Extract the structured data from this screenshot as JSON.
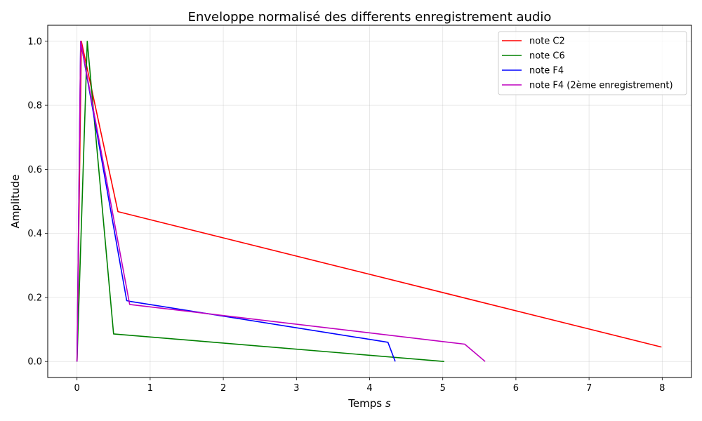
{
  "chart_data": {
    "type": "line",
    "title": "Enveloppe normalisé des differents enregistrement audio",
    "xlabel": "Temps",
    "xlabel_unit": "s",
    "ylabel": "Amplitude",
    "xlim": [
      -0.4,
      8.4
    ],
    "ylim": [
      -0.05,
      1.05
    ],
    "xticks": [
      0,
      1,
      2,
      3,
      4,
      5,
      6,
      7,
      8
    ],
    "yticks": [
      0.0,
      0.2,
      0.4,
      0.6,
      0.8,
      1.0
    ],
    "xtick_labels": [
      "0",
      "1",
      "2",
      "3",
      "4",
      "5",
      "6",
      "7",
      "8"
    ],
    "ytick_labels": [
      "0.0",
      "0.2",
      "0.4",
      "0.6",
      "0.8",
      "1.0"
    ],
    "grid": true,
    "legend_position": "top-right",
    "series": [
      {
        "name": "note C2",
        "color": "#ff0000",
        "points": [
          [
            0.0,
            0.0
          ],
          [
            0.06,
            1.0
          ],
          [
            0.56,
            0.468
          ],
          [
            7.99,
            0.045
          ]
        ]
      },
      {
        "name": "note C6",
        "color": "#008000",
        "points": [
          [
            0.0,
            0.0
          ],
          [
            0.14,
            1.0
          ],
          [
            0.5,
            0.086
          ],
          [
            5.02,
            0.0
          ]
        ]
      },
      {
        "name": "note F4",
        "color": "#0000ff",
        "points": [
          [
            0.0,
            0.0
          ],
          [
            0.05,
            1.0
          ],
          [
            0.68,
            0.19
          ],
          [
            0.72,
            0.188
          ],
          [
            4.25,
            0.06
          ],
          [
            4.35,
            0.0
          ]
        ]
      },
      {
        "name": "note F4 (2ème enregistrement)",
        "color": "#bf00bf",
        "points": [
          [
            0.0,
            0.0
          ],
          [
            0.05,
            1.0
          ],
          [
            0.72,
            0.178
          ],
          [
            5.3,
            0.054
          ],
          [
            5.58,
            0.0
          ]
        ]
      }
    ]
  }
}
